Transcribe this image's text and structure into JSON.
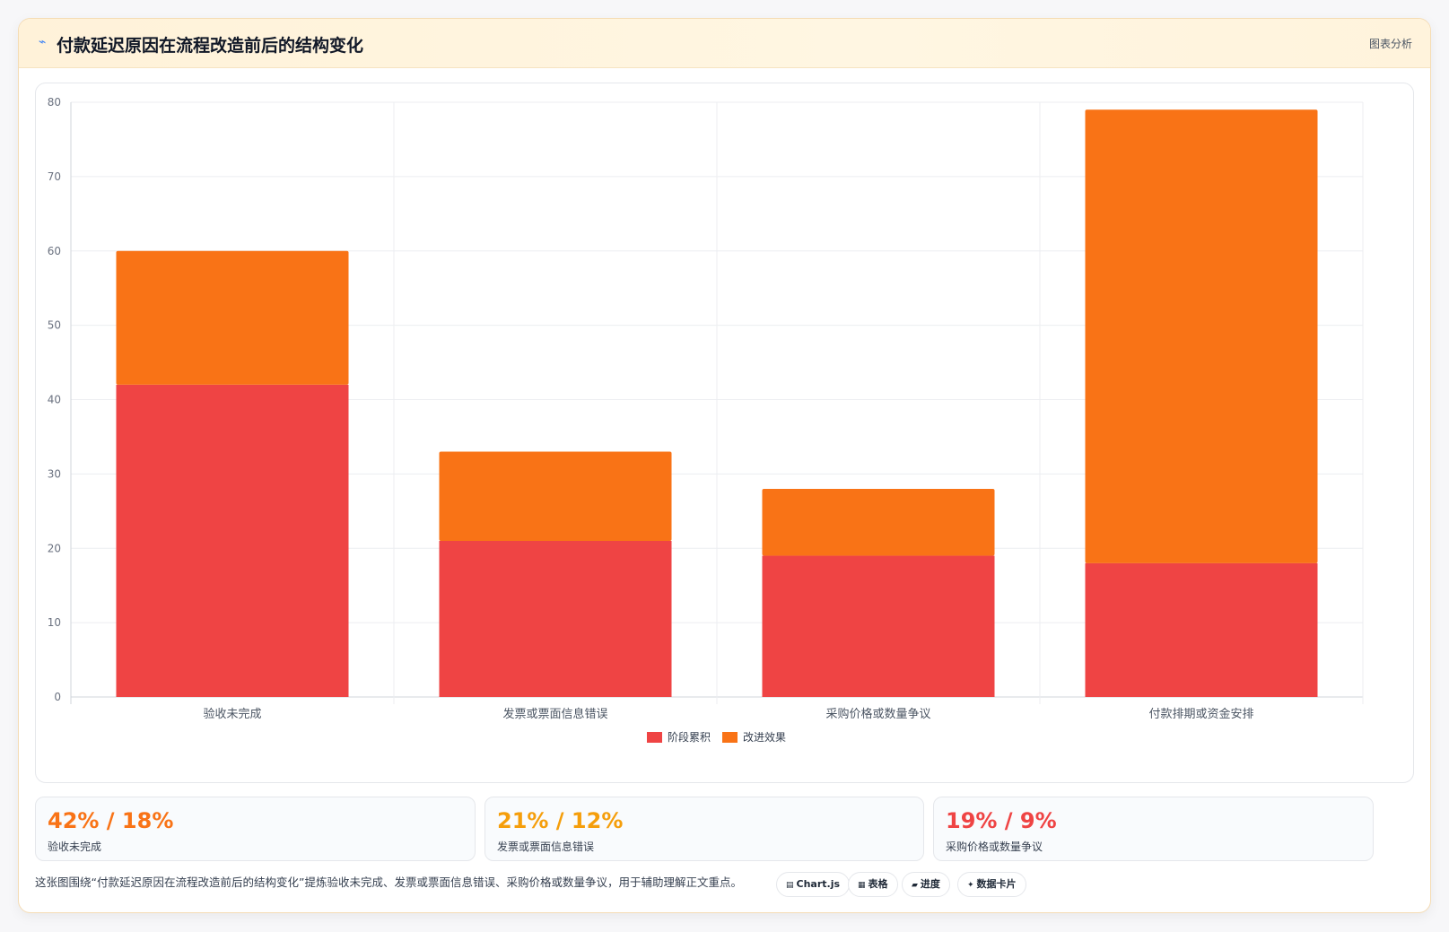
{
  "header": {
    "icon": "chart-line-icon",
    "title": "付款延迟原因在流程改造前后的结构变化",
    "tag": "图表分析"
  },
  "chart_data": {
    "type": "bar",
    "stacked": true,
    "categories": [
      "验收未完成",
      "发票或票面信息错误",
      "采购价格或数量争议",
      "付款排期或资金安排"
    ],
    "series": [
      {
        "name": "阶段累积",
        "color": "#ef4444",
        "values": [
          42,
          21,
          19,
          18
        ]
      },
      {
        "name": "改进效果",
        "color": "#f97316",
        "values": [
          18,
          12,
          9,
          61
        ]
      }
    ],
    "ylim": [
      0,
      80
    ],
    "yticks": [
      0,
      10,
      20,
      30,
      40,
      50,
      60,
      70,
      80
    ],
    "grid": true,
    "legend": "bottom"
  },
  "stats": [
    {
      "value": "42% / 18%",
      "label": "验收未完成",
      "color": "#f97316"
    },
    {
      "value": "21% / 12%",
      "label": "发票或票面信息错误",
      "color": "#f59e0b"
    },
    {
      "value": "19% / 9%",
      "label": "采购价格或数量争议",
      "color": "#ef4444"
    }
  ],
  "caption": "这张图围绕“付款延迟原因在流程改造前后的结构变化”提炼验收未完成、发票或票面信息错误、采购价格或数量争议，用于辅助理解正文重点。",
  "chips": [
    {
      "icon": "▤",
      "label": "Chart.js"
    },
    {
      "icon": "▦",
      "label": "表格"
    },
    {
      "icon": "▰",
      "label": "进度"
    },
    {
      "icon": "✦",
      "label": "数据卡片"
    }
  ]
}
